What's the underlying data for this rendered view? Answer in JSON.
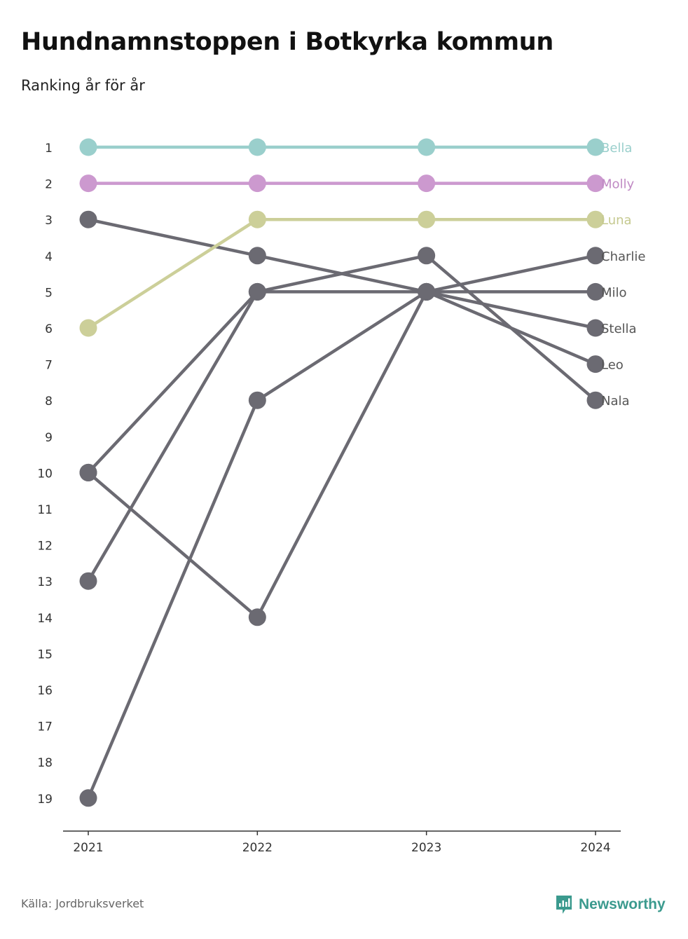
{
  "title": "Hundnamnstoppen i Botkyrka kommun",
  "subtitle": "Ranking år för år",
  "source": "Källa: Jordbruksverket",
  "brand": {
    "name": "Newsworthy",
    "icon": "newsworthy-logo-icon",
    "color": "#3b9a8e"
  },
  "chart_data": {
    "type": "line",
    "title": "Hundnamnstoppen i Botkyrka kommun",
    "subtitle": "Ranking år för år",
    "xlabel": "",
    "ylabel": "",
    "x": [
      "2021",
      "2022",
      "2023",
      "2024"
    ],
    "y_ticks": [
      "1",
      "2",
      "3",
      "4",
      "5",
      "6",
      "7",
      "8",
      "9",
      "10",
      "11",
      "12",
      "13",
      "14",
      "15",
      "16",
      "17",
      "18",
      "19"
    ],
    "ylim": [
      1,
      19
    ],
    "y_inverted": true,
    "grid": false,
    "series": [
      {
        "name": "Bella",
        "values": [
          1,
          1,
          1,
          1
        ],
        "color": "#9acfcc",
        "label_color": "#9acfcc"
      },
      {
        "name": "Molly",
        "values": [
          2,
          2,
          2,
          2
        ],
        "color": "#cc99cf",
        "label_color": "#c08ac4"
      },
      {
        "name": "Luna",
        "values": [
          6,
          3,
          3,
          3
        ],
        "color": "#cccf99",
        "label_color": "#c5c98f"
      },
      {
        "name": "Charlie",
        "values": [
          19,
          8,
          5,
          4
        ],
        "color": "#6b6a72",
        "label_color": "#555555"
      },
      {
        "name": "Milo",
        "values": [
          3,
          4,
          5,
          5
        ],
        "color": "#6b6a72",
        "label_color": "#555555"
      },
      {
        "name": "Stella",
        "values": [
          10,
          14,
          5,
          6
        ],
        "color": "#6b6a72",
        "label_color": "#555555"
      },
      {
        "name": "Leo",
        "values": [
          13,
          5,
          5,
          7
        ],
        "color": "#6b6a72",
        "label_color": "#555555"
      },
      {
        "name": "Nala",
        "values": [
          10,
          5,
          4,
          8
        ],
        "color": "#6b6a72",
        "label_color": "#555555"
      }
    ]
  }
}
